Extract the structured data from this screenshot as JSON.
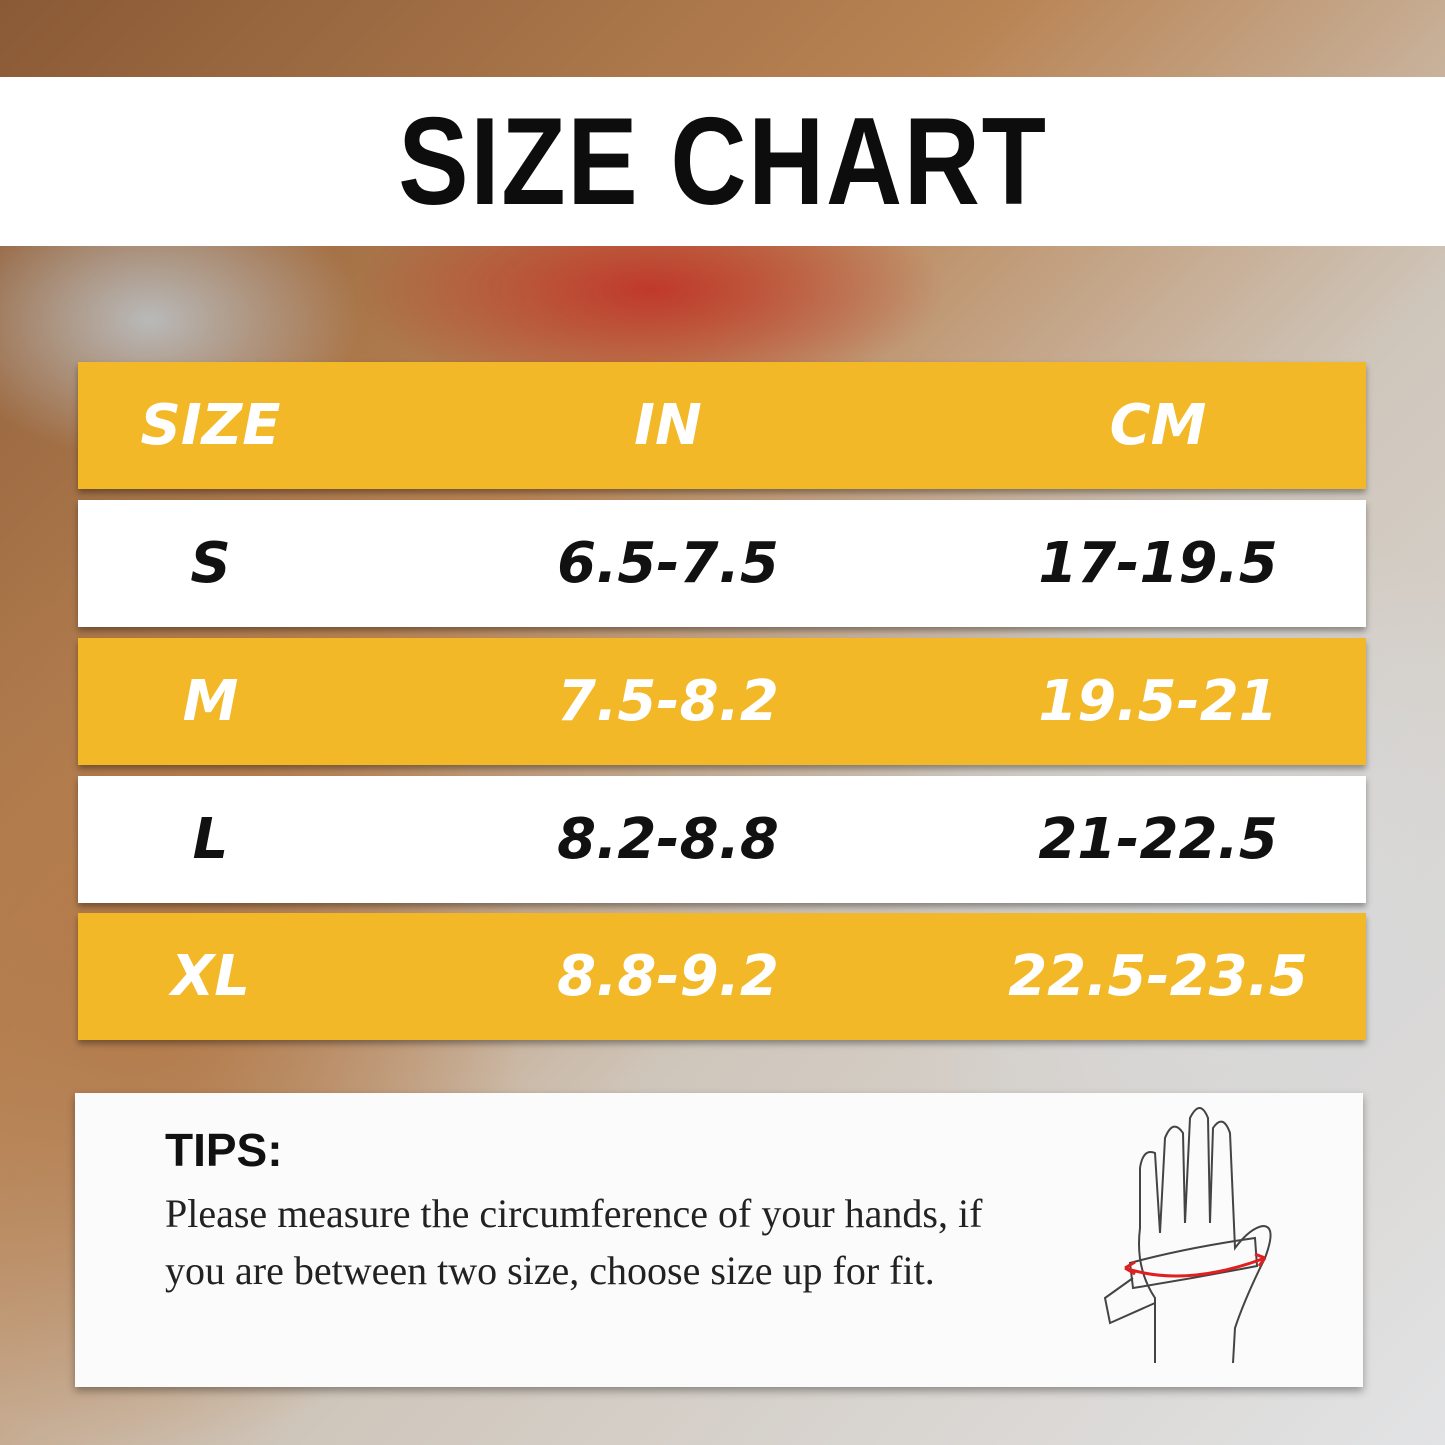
{
  "title": "SIZE CHART",
  "table": {
    "headers": [
      "SIZE",
      "IN",
      "CM"
    ],
    "rows": [
      {
        "size": "S",
        "in": "6.5-7.5",
        "cm": "17-19.5"
      },
      {
        "size": "M",
        "in": "7.5-8.2",
        "cm": "19.5-21"
      },
      {
        "size": "L",
        "in": "8.2-8.8",
        "cm": "21-22.5"
      },
      {
        "size": "XL",
        "in": "8.8-9.2",
        "cm": "22.5-23.5"
      }
    ]
  },
  "tips": {
    "heading": "TIPS:",
    "body": "Please measure the circumference of your hands, if you are between two size, choose size up for fit."
  },
  "colors": {
    "accent": "#f2b828",
    "measure_arrow": "#e02020"
  },
  "icons": {
    "illustration": "hand-measure-icon"
  }
}
